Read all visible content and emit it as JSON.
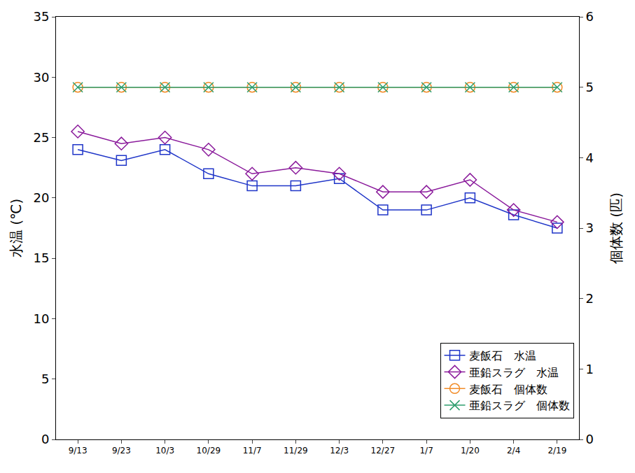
{
  "chart_data": {
    "type": "line",
    "categories": [
      "9/13",
      "9/23",
      "10/3",
      "10/29",
      "11/7",
      "11/29",
      "12/3",
      "12/27",
      "1/7",
      "1/20",
      "2/4",
      "2/19"
    ],
    "y_label": "水温 (℃)",
    "y2_label": "個体数 (匹)",
    "ylim": [
      0,
      35
    ],
    "yticks": [
      0,
      5,
      10,
      15,
      20,
      25,
      30,
      35
    ],
    "y2lim": [
      0,
      6
    ],
    "y2ticks": [
      0,
      1,
      2,
      3,
      4,
      5,
      6
    ],
    "grid": false,
    "legend": "lower right",
    "series": [
      {
        "name": "麦飯石　水温",
        "color": "#1f35c8",
        "marker": "square",
        "line_style": "solid",
        "values": [
          24,
          23.1,
          24,
          22,
          21,
          21,
          21.6,
          19,
          19,
          20,
          18.6,
          17.5
        ]
      },
      {
        "name": "亜鉛スラグ　水温",
        "color": "#8a1a9b",
        "marker": "diamond",
        "line_style": "solid",
        "values": [
          25.5,
          24.5,
          25,
          24,
          22,
          22.5,
          22,
          20.5,
          20.5,
          21.5,
          19,
          18
        ]
      },
      {
        "name": "麦飯石　個体数",
        "color": "#f28c28",
        "marker": "circle",
        "line_style": "solid",
        "axis": "y2",
        "values": [
          5,
          5,
          5,
          5,
          5,
          5,
          5,
          5,
          5,
          5,
          5,
          5
        ]
      },
      {
        "name": "亜鉛スラグ　個体数",
        "color": "#2e9e6e",
        "marker": "x",
        "line_style": "solid",
        "axis": "y2",
        "values": [
          5,
          5,
          5,
          5,
          5,
          5,
          5,
          5,
          5,
          5,
          5,
          5
        ]
      }
    ]
  }
}
